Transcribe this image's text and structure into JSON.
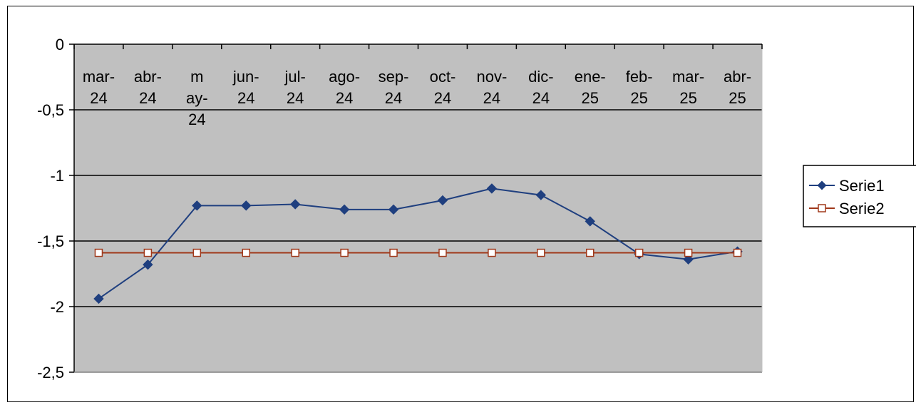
{
  "chart_data": {
    "type": "line",
    "title": "",
    "xlabel": "",
    "ylabel": "",
    "categories": [
      "mar-24",
      "abr-24",
      "may-24",
      "jun-24",
      "jul-24",
      "ago-24",
      "sep-24",
      "oct-24",
      "nov-24",
      "dic-24",
      "ene-25",
      "feb-25",
      "mar-25",
      "abr-25"
    ],
    "x_tick_labels": [
      [
        "mar-",
        "24"
      ],
      [
        "abr-",
        "24"
      ],
      [
        "m",
        "ay-",
        "24"
      ],
      [
        "jun-",
        "24"
      ],
      [
        "jul-",
        "24"
      ],
      [
        "ago-",
        "24"
      ],
      [
        "sep-",
        "24"
      ],
      [
        "oct-",
        "24"
      ],
      [
        "nov-",
        "24"
      ],
      [
        "dic-",
        "24"
      ],
      [
        "ene-",
        "25"
      ],
      [
        "feb-",
        "25"
      ],
      [
        "mar-",
        "25"
      ],
      [
        "abr-",
        "25"
      ]
    ],
    "y_tick_labels": [
      "0",
      "-0,5",
      "-1",
      "-1,5",
      "-2",
      "-2,5"
    ],
    "y_ticks": [
      0,
      -0.5,
      -1,
      -1.5,
      -2,
      -2.5
    ],
    "ylim": [
      -2.5,
      0
    ],
    "grid": true,
    "legend_position": "right",
    "series": [
      {
        "name": "Serie1",
        "color": "#1F3F7F",
        "marker": "diamond",
        "values": [
          -1.94,
          -1.68,
          -1.23,
          -1.23,
          -1.22,
          -1.26,
          -1.26,
          -1.19,
          -1.1,
          -1.15,
          -1.35,
          -1.6,
          -1.64,
          -1.58
        ]
      },
      {
        "name": "Serie2",
        "color": "#A0381A",
        "marker": "square-open",
        "values": [
          -1.59,
          -1.59,
          -1.59,
          -1.59,
          -1.59,
          -1.59,
          -1.59,
          -1.59,
          -1.59,
          -1.59,
          -1.59,
          -1.59,
          -1.59,
          -1.59
        ]
      }
    ],
    "plot_background": "#C0C0C0"
  }
}
